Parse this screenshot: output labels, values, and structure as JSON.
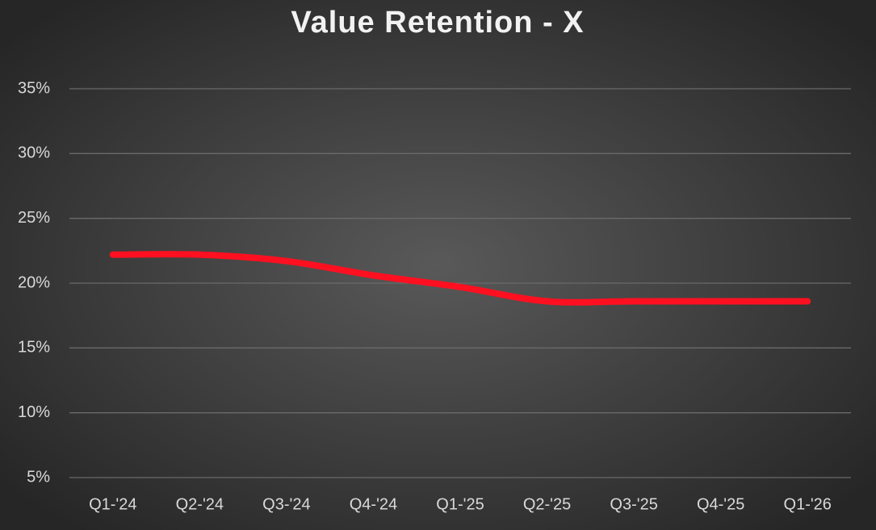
{
  "chart_data": {
    "type": "line",
    "title": "Value Retention - X",
    "categories": [
      "Q1-'24",
      "Q2-'24",
      "Q3-'24",
      "Q4-'24",
      "Q1-'25",
      "Q2-'25",
      "Q3-'25",
      "Q4-'25",
      "Q1-'26"
    ],
    "series": [
      {
        "name": "Value Retention - X",
        "color": "#ff1020",
        "values": [
          22.2,
          22.2,
          21.7,
          20.6,
          19.7,
          18.6,
          18.6,
          18.6,
          18.6
        ]
      }
    ],
    "ylim": [
      5,
      35
    ],
    "yticks": [
      {
        "value": 5,
        "label": "5%"
      },
      {
        "value": 10,
        "label": "10%"
      },
      {
        "value": 15,
        "label": "15%"
      },
      {
        "value": 20,
        "label": "20%"
      },
      {
        "value": 25,
        "label": "25%"
      },
      {
        "value": 30,
        "label": "30%"
      },
      {
        "value": 35,
        "label": "35%"
      }
    ],
    "grid": true,
    "smooth": true
  }
}
